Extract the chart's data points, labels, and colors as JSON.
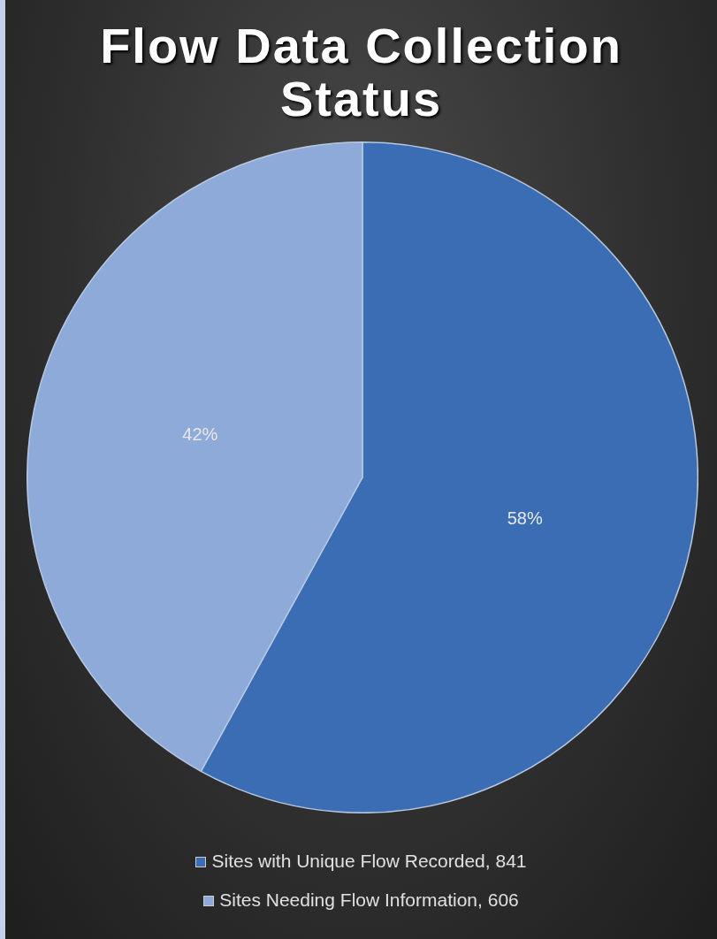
{
  "chart_data": {
    "type": "pie",
    "title": "Flow Data Collection Status",
    "categories": [
      "Sites with Unique Flow Recorded, 841",
      "Sites Needing Flow Information, 606"
    ],
    "values": [
      58,
      42
    ],
    "colors": [
      "#3a6db3",
      "#8eaad9"
    ],
    "value_labels": [
      "58%",
      "42%"
    ],
    "legend": "bottom"
  }
}
